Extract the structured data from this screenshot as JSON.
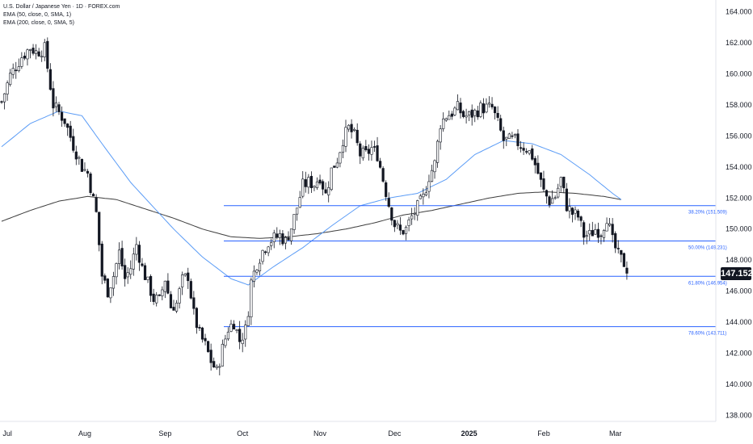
{
  "legend": {
    "title": "U.S. Dollar / Japanese Yen · 1D · FOREX.com",
    "ema50": "EMA (50, close, 0, SMA, 1)",
    "ema200": "EMA (200, close, 0, SMA, 5)"
  },
  "last_price": "147.152",
  "colors": {
    "up_candle": "#ffffff",
    "down_candle": "#131722",
    "ema50": "#5b9cf6",
    "ema200": "#3d3d3d",
    "fib_line": "#2962ff",
    "fib_label": "#2962ff",
    "axis_text": "#131722"
  },
  "chart_data": {
    "type": "candlestick",
    "title": "U.S. Dollar / Japanese Yen · 1D · FOREX.com",
    "ylim": [
      137.8,
      164.6
    ],
    "y_ticks": [
      "164.000",
      "162.000",
      "160.000",
      "158.000",
      "156.000",
      "154.000",
      "152.000",
      "150.000",
      "148.000",
      "146.000",
      "144.000",
      "142.000",
      "140.000",
      "138.000"
    ],
    "x_ticks": [
      {
        "label": "Jul",
        "bar": 2
      },
      {
        "label": "Aug",
        "bar": 29
      },
      {
        "label": "Sep",
        "bar": 57
      },
      {
        "label": "Oct",
        "bar": 84
      },
      {
        "label": "Nov",
        "bar": 111
      },
      {
        "label": "Dec",
        "bar": 137
      },
      {
        "label": "2025",
        "bar": 163
      },
      {
        "label": "Feb",
        "bar": 189
      },
      {
        "label": "Mar",
        "bar": 214
      }
    ],
    "total_bars": 260,
    "close_anchors": [
      [
        0,
        158.2
      ],
      [
        3,
        159.9
      ],
      [
        7,
        161.1
      ],
      [
        10,
        161.7
      ],
      [
        12,
        161.4
      ],
      [
        15,
        161.6
      ],
      [
        18,
        158.0
      ],
      [
        22,
        157.0
      ],
      [
        25,
        155.4
      ],
      [
        28,
        154.0
      ],
      [
        30,
        153.6
      ],
      [
        33,
        151.0
      ],
      [
        35,
        147.0
      ],
      [
        37,
        146.0
      ],
      [
        39,
        147.0
      ],
      [
        41,
        148.5
      ],
      [
        43,
        146.8
      ],
      [
        45,
        147.5
      ],
      [
        47,
        149.0
      ],
      [
        49,
        147.5
      ],
      [
        51,
        146.5
      ],
      [
        53,
        145.5
      ],
      [
        55,
        145.4
      ],
      [
        57,
        146.8
      ],
      [
        59,
        145.0
      ],
      [
        61,
        145.2
      ],
      [
        63,
        146.7
      ],
      [
        65,
        147.0
      ],
      [
        67,
        144.5
      ],
      [
        69,
        143.2
      ],
      [
        71,
        142.5
      ],
      [
        73,
        141.5
      ],
      [
        75,
        140.8
      ],
      [
        77,
        142.3
      ],
      [
        79,
        143.6
      ],
      [
        81,
        144.0
      ],
      [
        83,
        142.8
      ],
      [
        85,
        143.5
      ],
      [
        86,
        144.8
      ],
      [
        87,
        146.6
      ],
      [
        89,
        147.8
      ],
      [
        91,
        148.6
      ],
      [
        93,
        149.2
      ],
      [
        95,
        149.4
      ],
      [
        97,
        149.6
      ],
      [
        99,
        149.2
      ],
      [
        101,
        150.1
      ],
      [
        103,
        151.4
      ],
      [
        105,
        152.8
      ],
      [
        107,
        153.0
      ],
      [
        109,
        152.9
      ],
      [
        111,
        153.4
      ],
      [
        113,
        152.2
      ],
      [
        115,
        153.8
      ],
      [
        117,
        154.5
      ],
      [
        119,
        155.8
      ],
      [
        121,
        156.5
      ],
      [
        123,
        156.0
      ],
      [
        125,
        154.8
      ],
      [
        127,
        154.8
      ],
      [
        129,
        155.2
      ],
      [
        131,
        154.8
      ],
      [
        133,
        153.2
      ],
      [
        135,
        151.6
      ],
      [
        137,
        150.3
      ],
      [
        139,
        149.8
      ],
      [
        141,
        150.0
      ],
      [
        143,
        150.8
      ],
      [
        145,
        151.4
      ],
      [
        147,
        152.0
      ],
      [
        149,
        153.4
      ],
      [
        151,
        154.2
      ],
      [
        153,
        156.8
      ],
      [
        155,
        157.3
      ],
      [
        157,
        157.5
      ],
      [
        159,
        157.8
      ],
      [
        161,
        157.3
      ],
      [
        163,
        157.3
      ],
      [
        165,
        157.5
      ],
      [
        167,
        157.8
      ],
      [
        169,
        157.8
      ],
      [
        171,
        157.8
      ],
      [
        173,
        156.8
      ],
      [
        175,
        155.7
      ],
      [
        177,
        155.7
      ],
      [
        179,
        155.7
      ],
      [
        181,
        155.4
      ],
      [
        183,
        155.2
      ],
      [
        185,
        154.7
      ],
      [
        187,
        153.6
      ],
      [
        189,
        152.4
      ],
      [
        191,
        151.8
      ],
      [
        193,
        152.1
      ],
      [
        195,
        153.2
      ],
      [
        197,
        151.5
      ],
      [
        199,
        151.0
      ],
      [
        201,
        150.8
      ],
      [
        203,
        149.6
      ],
      [
        205,
        149.6
      ],
      [
        207,
        150.0
      ],
      [
        209,
        149.8
      ],
      [
        211,
        150.8
      ],
      [
        213,
        149.2
      ],
      [
        215,
        148.3
      ],
      [
        217,
        147.8
      ],
      [
        218,
        147.15
      ]
    ],
    "ema50_anchors": [
      [
        0,
        155.3
      ],
      [
        10,
        156.8
      ],
      [
        20,
        157.6
      ],
      [
        28,
        157.3
      ],
      [
        35,
        155.5
      ],
      [
        45,
        153.0
      ],
      [
        55,
        151.0
      ],
      [
        60,
        150.0
      ],
      [
        70,
        148.2
      ],
      [
        80,
        146.8
      ],
      [
        86,
        146.4
      ],
      [
        95,
        147.6
      ],
      [
        105,
        148.8
      ],
      [
        115,
        150.2
      ],
      [
        125,
        151.5
      ],
      [
        135,
        152.0
      ],
      [
        145,
        152.3
      ],
      [
        155,
        153.2
      ],
      [
        165,
        154.8
      ],
      [
        175,
        155.7
      ],
      [
        185,
        155.5
      ],
      [
        195,
        154.8
      ],
      [
        205,
        153.5
      ],
      [
        213,
        152.3
      ],
      [
        216,
        151.9
      ]
    ],
    "ema200_anchors": [
      [
        0,
        150.5
      ],
      [
        10,
        151.2
      ],
      [
        20,
        151.8
      ],
      [
        30,
        152.1
      ],
      [
        40,
        151.9
      ],
      [
        50,
        151.3
      ],
      [
        60,
        150.7
      ],
      [
        70,
        150.0
      ],
      [
        80,
        149.5
      ],
      [
        90,
        149.4
      ],
      [
        100,
        149.5
      ],
      [
        110,
        149.7
      ],
      [
        120,
        150.0
      ],
      [
        130,
        150.4
      ],
      [
        140,
        150.9
      ],
      [
        150,
        151.2
      ],
      [
        160,
        151.6
      ],
      [
        170,
        152.0
      ],
      [
        180,
        152.3
      ],
      [
        190,
        152.4
      ],
      [
        200,
        152.3
      ],
      [
        210,
        152.1
      ],
      [
        216,
        151.9
      ]
    ],
    "fib_levels": [
      {
        "label": "38.20% (151.509)",
        "value": 151.509,
        "start_bar": 84
      },
      {
        "label": "50.00% (149.231)",
        "value": 149.231,
        "start_bar": 84
      },
      {
        "label": "61.80% (146.954)",
        "value": 146.954,
        "start_bar": 84
      },
      {
        "label": "78.60% (143.711)",
        "value": 143.711,
        "start_bar": 84
      }
    ]
  }
}
